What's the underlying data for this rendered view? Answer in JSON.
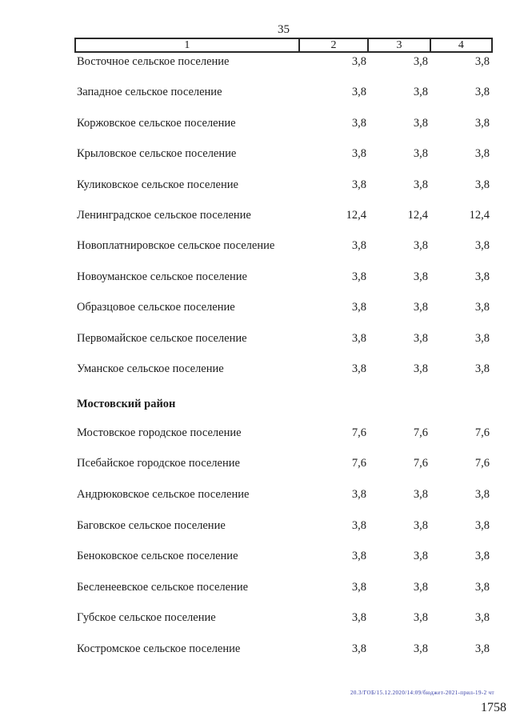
{
  "page": {
    "number": "35",
    "background_color": "#ffffff",
    "text_color": "#1c1c1c"
  },
  "table": {
    "header": [
      "1",
      "2",
      "3",
      "4"
    ],
    "rows": [
      {
        "name": "Восточное сельское поселение",
        "section": false,
        "values": [
          "3,8",
          "3,8",
          "3,8"
        ]
      },
      {
        "name": "Западное сельское поселение",
        "section": false,
        "values": [
          "3,8",
          "3,8",
          "3,8"
        ]
      },
      {
        "name": "Коржовское сельское поселение",
        "section": false,
        "values": [
          "3,8",
          "3,8",
          "3,8"
        ]
      },
      {
        "name": "Крыловское сельское поселение",
        "section": false,
        "values": [
          "3,8",
          "3,8",
          "3,8"
        ]
      },
      {
        "name": "Куликовское сельское поселение",
        "section": false,
        "values": [
          "3,8",
          "3,8",
          "3,8"
        ]
      },
      {
        "name": "Ленинградское сельское поселение",
        "section": false,
        "values": [
          "12,4",
          "12,4",
          "12,4"
        ]
      },
      {
        "name": "Новоплатнировское сельское поселение",
        "section": false,
        "values": [
          "3,8",
          "3,8",
          "3,8"
        ]
      },
      {
        "name": "Новоуманское сельское поселение",
        "section": false,
        "values": [
          "3,8",
          "3,8",
          "3,8"
        ]
      },
      {
        "name": "Образцовое сельское поселение",
        "section": false,
        "values": [
          "3,8",
          "3,8",
          "3,8"
        ]
      },
      {
        "name": "Первомайское сельское поселение",
        "section": false,
        "values": [
          "3,8",
          "3,8",
          "3,8"
        ]
      },
      {
        "name": "Уманское сельское поселение",
        "section": false,
        "values": [
          "3,8",
          "3,8",
          "3,8"
        ]
      },
      {
        "name": "Мостовский район",
        "section": true,
        "values": []
      },
      {
        "name": "Мостовское городское поселение",
        "section": false,
        "values": [
          "7,6",
          "7,6",
          "7,6"
        ]
      },
      {
        "name": "Псебайское городское поселение",
        "section": false,
        "values": [
          "7,6",
          "7,6",
          "7,6"
        ]
      },
      {
        "name": "Андрюковское сельское поселение",
        "section": false,
        "values": [
          "3,8",
          "3,8",
          "3,8"
        ]
      },
      {
        "name": "Баговское сельское поселение",
        "section": false,
        "values": [
          "3,8",
          "3,8",
          "3,8"
        ]
      },
      {
        "name": "Беноковское сельское поселение",
        "section": false,
        "values": [
          "3,8",
          "3,8",
          "3,8"
        ]
      },
      {
        "name": "Бесленеевское сельское поселение",
        "section": false,
        "values": [
          "3,8",
          "3,8",
          "3,8"
        ]
      },
      {
        "name": "Губское сельское поселение",
        "section": false,
        "values": [
          "3,8",
          "3,8",
          "3,8"
        ]
      },
      {
        "name": "Костромское сельское поселение",
        "section": false,
        "values": [
          "3,8",
          "3,8",
          "3,8"
        ]
      }
    ]
  },
  "footer": {
    "stamp": "20.3/ГОБ/15.12.2020/14:09/бюджет-2021-прил-19-2 чт",
    "stamp_color": "#2f37a3",
    "number": "1758"
  }
}
